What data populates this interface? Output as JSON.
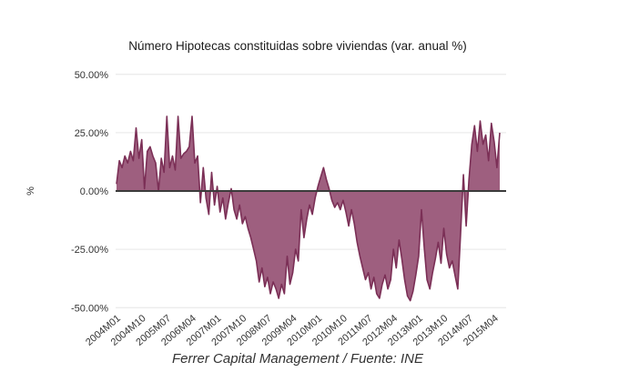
{
  "chart_data": {
    "type": "area",
    "title": "Número Hipotecas constituidas sobre viviendas (var. anual %)",
    "caption": "Ferrer Capital Management / Fuente: INE",
    "ylabel": "%",
    "ylim": [
      -50,
      50
    ],
    "grid": "horizontal",
    "legend": "none",
    "y_ticks": [
      {
        "value": 50,
        "label": "50.00%"
      },
      {
        "value": 25,
        "label": "25.00%"
      },
      {
        "value": 0,
        "label": "0.00%"
      },
      {
        "value": -25,
        "label": "-25.00%"
      },
      {
        "value": -50,
        "label": "-50.00%"
      }
    ],
    "x_start": "2004M01",
    "x_end": "2015M06",
    "x_tick_every": 9,
    "x_tick_labels": [
      "2004M01",
      "2004M10",
      "2005M07",
      "2006M04",
      "2007M01",
      "2007M10",
      "2008M07",
      "2009M04",
      "2010M01",
      "2010M10",
      "2011M07",
      "2012M04",
      "2013M01",
      "2013M10",
      "2014M07",
      "2015M04"
    ],
    "values": [
      3,
      13,
      10,
      15,
      12,
      17,
      13,
      27,
      14,
      22,
      1,
      17,
      19,
      15,
      12,
      0,
      14,
      8,
      32,
      10,
      15,
      9,
      32,
      14,
      16,
      17,
      19,
      32,
      12,
      15,
      -5,
      10,
      -3,
      -10,
      8,
      -6,
      2,
      -9,
      -3,
      -12,
      -5,
      1,
      -8,
      -12,
      -6,
      -14,
      -11,
      -16,
      -20,
      -25,
      -30,
      -39,
      -33,
      -41,
      -37,
      -44,
      -39,
      -42,
      -46,
      -40,
      -44,
      -28,
      -40,
      -35,
      -25,
      -30,
      -8,
      -20,
      -12,
      -6,
      -10,
      -3,
      2,
      6,
      10,
      5,
      1,
      -4,
      -7,
      -5,
      -8,
      -4,
      -9,
      -15,
      -8,
      -14,
      -22,
      -28,
      -33,
      -38,
      -35,
      -42,
      -37,
      -44,
      -46,
      -40,
      -36,
      -42,
      -38,
      -25,
      -33,
      -21,
      -29,
      -38,
      -45,
      -47,
      -43,
      -36,
      -28,
      -8,
      -24,
      -38,
      -42,
      -35,
      -29,
      -22,
      -31,
      -16,
      -27,
      -33,
      -30,
      -36,
      -42,
      -18,
      7,
      -15,
      5,
      20,
      28,
      17,
      30,
      20,
      24,
      13,
      29,
      21,
      10,
      25
    ],
    "colors": {
      "fill": "#9e5f7f",
      "stroke": "#7b2f56",
      "zero_line": "#3b3b3b",
      "gridline": "#e6e6e6",
      "text": "#333333",
      "background": "#ffffff"
    }
  }
}
